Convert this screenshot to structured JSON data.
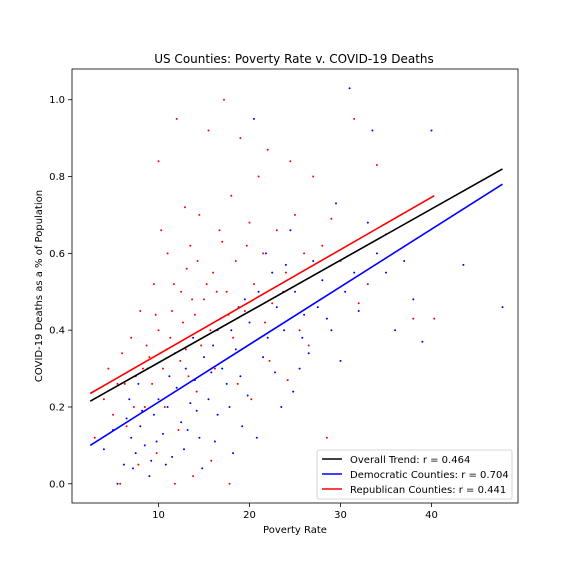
{
  "chart_data": {
    "type": "scatter",
    "title": "US Counties: Poverty Rate v. COVID-19 Deaths",
    "xlabel": "Poverty Rate",
    "ylabel": "COVID-19 Deaths as a % of Population",
    "xlim": [
      0.5,
      49.5
    ],
    "ylim": [
      -0.05,
      1.08
    ],
    "xticks": [
      10,
      20,
      30,
      40
    ],
    "yticks": [
      0.0,
      0.2,
      0.4,
      0.6,
      0.8,
      1.0
    ],
    "grid": false,
    "legend_position": "lower-right",
    "series": [
      {
        "name": "Democratic Counties",
        "kind": "points",
        "color": "#0000ff",
        "points": [
          [
            5.5,
            0.0
          ],
          [
            6.2,
            0.05
          ],
          [
            7.0,
            0.12
          ],
          [
            7.5,
            0.08
          ],
          [
            8.0,
            0.15
          ],
          [
            8.5,
            0.1
          ],
          [
            9.0,
            0.02
          ],
          [
            9.5,
            0.18
          ],
          [
            10.0,
            0.22
          ],
          [
            10.5,
            0.13
          ],
          [
            11.0,
            0.2
          ],
          [
            11.5,
            0.07
          ],
          [
            12.0,
            0.25
          ],
          [
            12.5,
            0.16
          ],
          [
            13.0,
            0.3
          ],
          [
            13.5,
            0.21
          ],
          [
            14.0,
            0.27
          ],
          [
            14.5,
            0.12
          ],
          [
            15.0,
            0.33
          ],
          [
            15.5,
            0.22
          ],
          [
            16.0,
            0.36
          ],
          [
            16.5,
            0.18
          ],
          [
            17.0,
            0.3
          ],
          [
            17.5,
            0.26
          ],
          [
            18.0,
            0.4
          ],
          [
            18.5,
            0.35
          ],
          [
            19.0,
            0.28
          ],
          [
            19.5,
            0.48
          ],
          [
            20.0,
            0.42
          ],
          [
            20.5,
            0.95
          ],
          [
            21.0,
            0.5
          ],
          [
            21.5,
            0.33
          ],
          [
            22.0,
            0.38
          ],
          [
            22.5,
            0.55
          ],
          [
            23.0,
            0.46
          ],
          [
            24.0,
            0.57
          ],
          [
            24.5,
            0.66
          ],
          [
            25.0,
            0.5
          ],
          [
            25.5,
            0.3
          ],
          [
            26.0,
            0.44
          ],
          [
            27.0,
            0.58
          ],
          [
            28.0,
            0.53
          ],
          [
            28.5,
            0.43
          ],
          [
            29.0,
            0.4
          ],
          [
            29.5,
            0.73
          ],
          [
            30.0,
            0.32
          ],
          [
            30.5,
            0.5
          ],
          [
            31.0,
            1.03
          ],
          [
            31.5,
            0.55
          ],
          [
            32.0,
            0.45
          ],
          [
            33.0,
            0.68
          ],
          [
            33.5,
            0.92
          ],
          [
            34.0,
            0.6
          ],
          [
            35.0,
            0.55
          ],
          [
            36.0,
            0.4
          ],
          [
            37.0,
            0.58
          ],
          [
            38.0,
            0.48
          ],
          [
            39.0,
            0.37
          ],
          [
            40.0,
            0.92
          ],
          [
            43.5,
            0.57
          ],
          [
            47.8,
            0.46
          ],
          [
            6.8,
            0.22
          ],
          [
            7.8,
            0.26
          ],
          [
            8.8,
            0.3
          ],
          [
            9.8,
            0.11
          ],
          [
            10.8,
            0.05
          ],
          [
            11.8,
            0.34
          ],
          [
            12.8,
            0.09
          ],
          [
            13.8,
            0.38
          ],
          [
            14.8,
            0.04
          ],
          [
            15.8,
            0.29
          ],
          [
            16.8,
            0.43
          ],
          [
            17.8,
            0.2
          ],
          [
            18.8,
            0.46
          ],
          [
            19.8,
            0.23
          ],
          [
            20.8,
            0.12
          ],
          [
            21.8,
            0.6
          ],
          [
            22.8,
            0.29
          ],
          [
            23.8,
            0.4
          ],
          [
            26.5,
            0.34
          ],
          [
            27.5,
            0.46
          ],
          [
            24.8,
            0.24
          ],
          [
            19.2,
            0.15
          ],
          [
            9.2,
            0.06
          ],
          [
            4.0,
            0.09
          ],
          [
            5.0,
            0.14
          ],
          [
            6.5,
            0.17
          ],
          [
            7.2,
            0.04
          ],
          [
            8.2,
            0.19
          ],
          [
            13.2,
            0.14
          ],
          [
            11.2,
            0.28
          ],
          [
            14.2,
            0.19
          ],
          [
            16.2,
            0.11
          ],
          [
            18.2,
            0.08
          ],
          [
            23.5,
            0.2
          ],
          [
            25.8,
            0.38
          ]
        ]
      },
      {
        "name": "Republican Counties",
        "kind": "points",
        "color": "#ff0000",
        "points": [
          [
            3.0,
            0.12
          ],
          [
            4.0,
            0.22
          ],
          [
            4.5,
            0.3
          ],
          [
            5.0,
            0.18
          ],
          [
            5.5,
            0.26
          ],
          [
            6.0,
            0.34
          ],
          [
            6.5,
            0.15
          ],
          [
            7.0,
            0.38
          ],
          [
            7.5,
            0.28
          ],
          [
            8.0,
            0.45
          ],
          [
            8.5,
            0.2
          ],
          [
            9.0,
            0.33
          ],
          [
            9.5,
            0.52
          ],
          [
            10.0,
            0.4
          ],
          [
            10.5,
            0.3
          ],
          [
            10.0,
            0.84
          ],
          [
            11.0,
            0.6
          ],
          [
            11.5,
            0.45
          ],
          [
            12.0,
            0.95
          ],
          [
            12.5,
            0.5
          ],
          [
            13.0,
            0.35
          ],
          [
            13.5,
            0.62
          ],
          [
            14.0,
            0.44
          ],
          [
            14.5,
            0.7
          ],
          [
            15.0,
            0.48
          ],
          [
            15.5,
            0.92
          ],
          [
            16.0,
            0.55
          ],
          [
            16.5,
            0.4
          ],
          [
            17.0,
            0.63
          ],
          [
            17.2,
            1.0
          ],
          [
            17.5,
            0.5
          ],
          [
            18.0,
            0.75
          ],
          [
            18.5,
            0.58
          ],
          [
            19.0,
            0.9
          ],
          [
            19.5,
            0.45
          ],
          [
            20.0,
            0.68
          ],
          [
            20.5,
            0.52
          ],
          [
            21.0,
            0.8
          ],
          [
            21.5,
            0.6
          ],
          [
            22.0,
            0.87
          ],
          [
            22.5,
            0.47
          ],
          [
            23.0,
            0.66
          ],
          [
            24.0,
            0.55
          ],
          [
            24.5,
            0.84
          ],
          [
            25.0,
            0.7
          ],
          [
            26.0,
            0.6
          ],
          [
            27.0,
            0.8
          ],
          [
            28.0,
            0.62
          ],
          [
            29.0,
            0.69
          ],
          [
            30.0,
            0.58
          ],
          [
            31.5,
            0.95
          ],
          [
            32.0,
            0.47
          ],
          [
            33.0,
            0.52
          ],
          [
            34.0,
            0.83
          ],
          [
            35.0,
            0.65
          ],
          [
            38.0,
            0.43
          ],
          [
            40.3,
            0.43
          ],
          [
            5.8,
            0.0
          ],
          [
            7.8,
            0.05
          ],
          [
            9.8,
            0.08
          ],
          [
            11.8,
            0.0
          ],
          [
            13.8,
            0.02
          ],
          [
            15.8,
            0.06
          ],
          [
            17.8,
            0.0
          ],
          [
            12.2,
            0.14
          ],
          [
            14.2,
            0.24
          ],
          [
            16.2,
            0.3
          ],
          [
            18.2,
            0.38
          ],
          [
            20.2,
            0.22
          ],
          [
            22.2,
            0.32
          ],
          [
            24.2,
            0.27
          ],
          [
            26.5,
            0.36
          ],
          [
            28.5,
            0.12
          ],
          [
            11.3,
            0.38
          ],
          [
            12.7,
            0.42
          ],
          [
            13.3,
            0.28
          ],
          [
            14.7,
            0.36
          ],
          [
            15.3,
            0.52
          ],
          [
            9.3,
            0.26
          ],
          [
            10.7,
            0.2
          ],
          [
            8.7,
            0.36
          ],
          [
            7.3,
            0.2
          ],
          [
            6.3,
            0.26
          ],
          [
            12.9,
            0.72
          ],
          [
            16.7,
            0.66
          ],
          [
            19.7,
            0.62
          ],
          [
            21.7,
            0.42
          ],
          [
            23.7,
            0.5
          ],
          [
            25.5,
            0.4
          ],
          [
            18.7,
            0.26
          ],
          [
            10.3,
            0.66
          ],
          [
            11.7,
            0.52
          ],
          [
            13.7,
            0.48
          ],
          [
            15.7,
            0.4
          ],
          [
            17.7,
            0.44
          ],
          [
            14.3,
            0.58
          ],
          [
            12.4,
            0.32
          ],
          [
            9.7,
            0.44
          ],
          [
            8.3,
            0.3
          ],
          [
            10.9,
            0.35
          ],
          [
            13.1,
            0.56
          ],
          [
            16.4,
            0.5
          ]
        ]
      },
      {
        "name": "Overall Trend: r = 0.464",
        "kind": "line",
        "color": "#000000",
        "x": [
          2.5,
          47.8
        ],
        "y": [
          0.215,
          0.82
        ]
      },
      {
        "name": "Democratic Counties: r = 0.704",
        "kind": "line",
        "color": "#0000ff",
        "x": [
          2.5,
          47.8
        ],
        "y": [
          0.1,
          0.78
        ]
      },
      {
        "name": "Republican Counties: r = 0.441",
        "kind": "line",
        "color": "#ff0000",
        "x": [
          2.5,
          40.3
        ],
        "y": [
          0.235,
          0.75
        ]
      }
    ]
  }
}
